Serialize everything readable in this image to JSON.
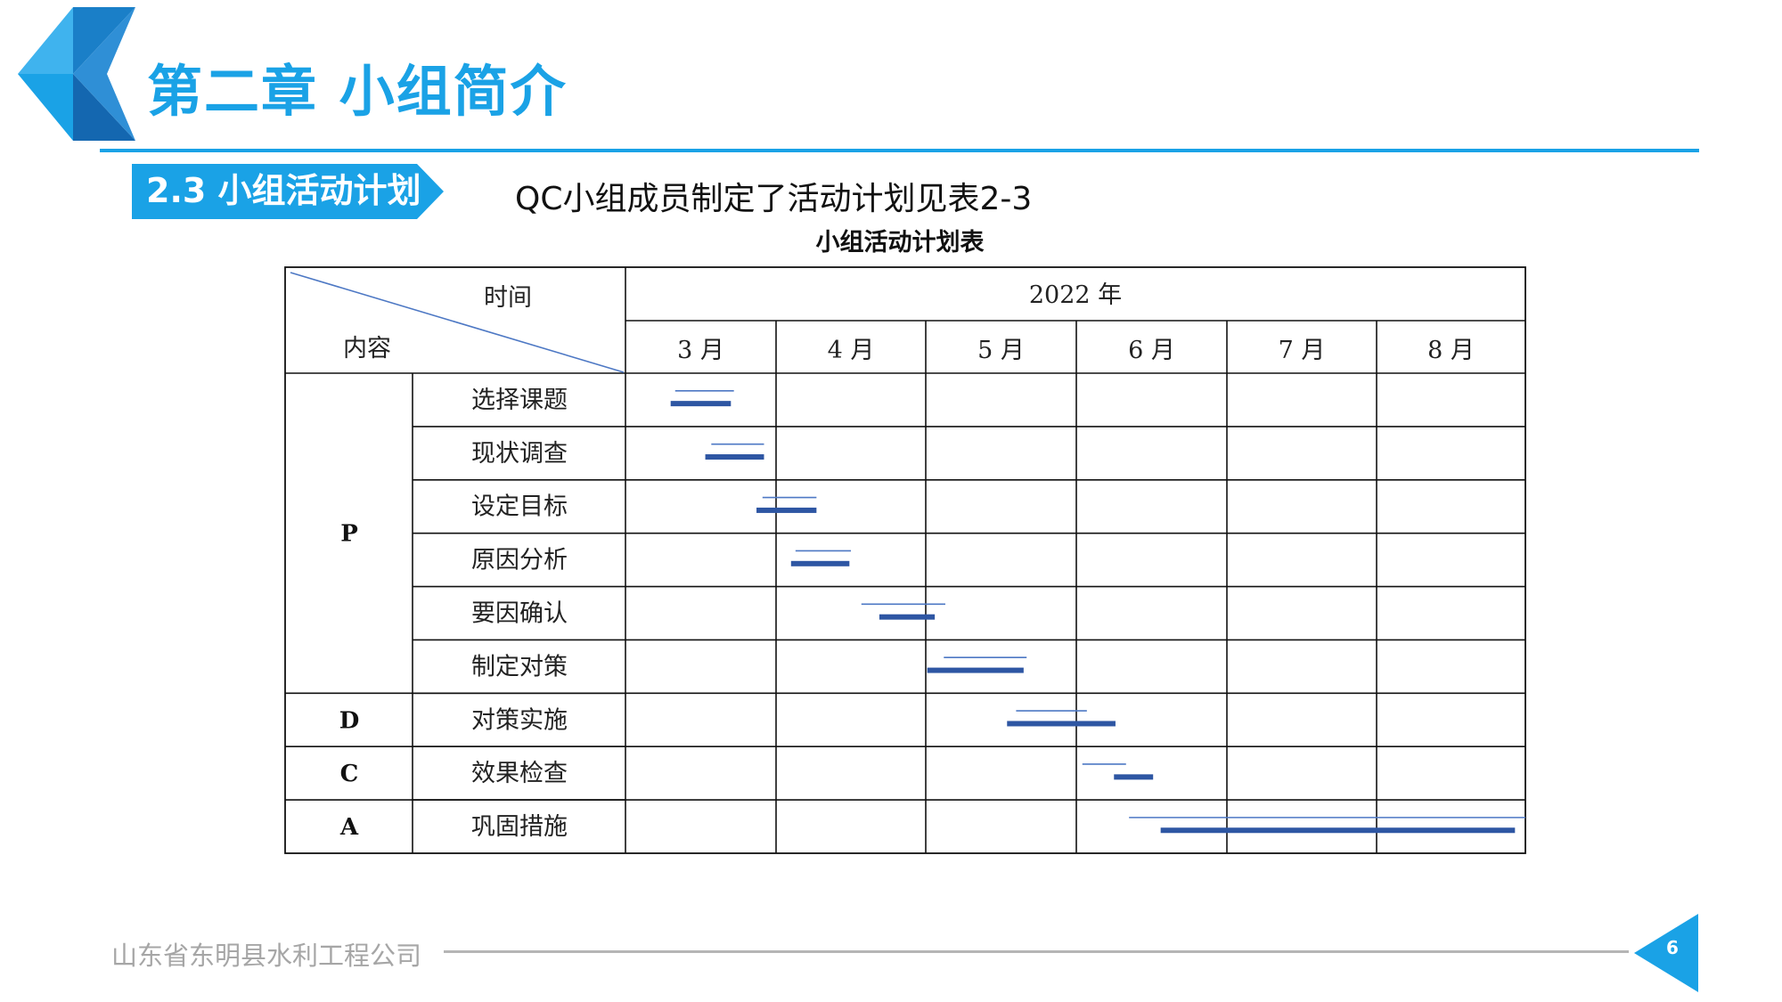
{
  "title": "第二章  小组简介",
  "section": {
    "label": "2.3 小组活动计划"
  },
  "subtitle": "QC小组成员制定了活动计划见表2-3",
  "table": {
    "caption": "小组活动计划表",
    "header_time": "时间",
    "header_content": "内容",
    "year": "2022 年",
    "months": [
      "3 月",
      "4 月",
      "5 月",
      "6 月",
      "7 月",
      "8 月"
    ],
    "phases": [
      {
        "label": "P",
        "rows": 6
      },
      {
        "label": "D",
        "rows": 1
      },
      {
        "label": "C",
        "rows": 1
      },
      {
        "label": "A",
        "rows": 1
      }
    ],
    "tasks": [
      {
        "name": "选择课题",
        "plan": [
          3.33,
          3.72
        ],
        "actual": [
          3.3,
          3.7
        ]
      },
      {
        "name": "现状调查",
        "plan": [
          3.57,
          3.92
        ],
        "actual": [
          3.53,
          3.92
        ]
      },
      {
        "name": "设定目标",
        "plan": [
          3.91,
          4.27
        ],
        "actual": [
          3.87,
          4.27
        ]
      },
      {
        "name": "原因分析",
        "plan": [
          4.13,
          4.5
        ],
        "actual": [
          4.1,
          4.49
        ]
      },
      {
        "name": "要因确认",
        "plan": [
          4.57,
          5.13
        ],
        "actual": [
          4.69,
          5.06
        ]
      },
      {
        "name": "制定对策",
        "plan": [
          5.12,
          5.67
        ],
        "actual": [
          5.01,
          5.65
        ]
      },
      {
        "name": "对策实施",
        "plan": [
          5.6,
          6.07
        ],
        "actual": [
          5.54,
          6.26
        ]
      },
      {
        "name": "效果检查",
        "plan": [
          6.04,
          6.33
        ],
        "actual": [
          6.25,
          6.51
        ]
      },
      {
        "name": "巩固措施",
        "plan": [
          6.35,
          9.0
        ],
        "actual": [
          6.56,
          8.93
        ]
      }
    ]
  },
  "footer": {
    "company": "山东省东明县水利工程公司",
    "page": "6"
  },
  "colors": {
    "accent": "#1aa2e6",
    "logo_dark": "#1467b0",
    "bar": "#2e56a3",
    "plan_line": "#4d78c4"
  }
}
